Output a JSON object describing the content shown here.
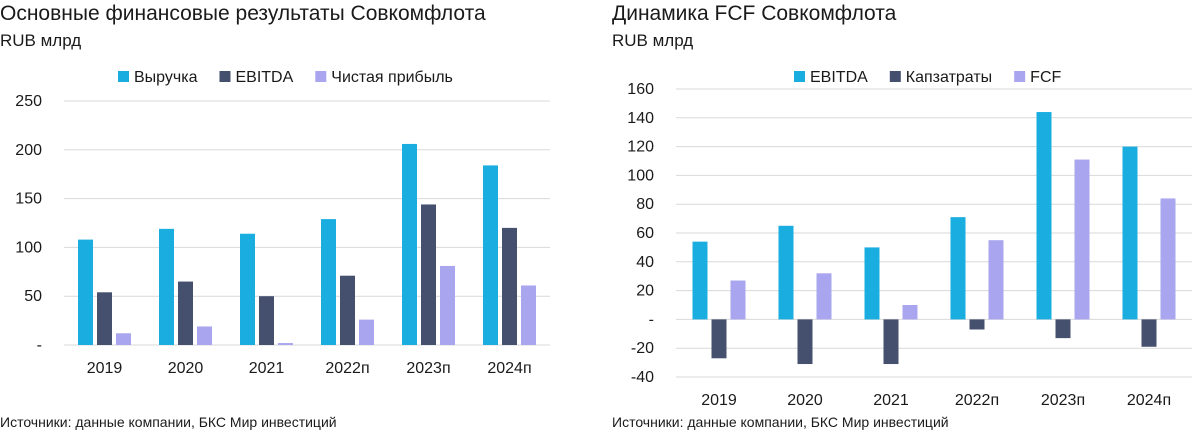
{
  "charts": [
    {
      "title": "Основные финансовые результаты Совкомфлота",
      "unit": "RUB млрд",
      "source": "Источники: данные компании, БКС Мир инвестиций",
      "chart_data": {
        "type": "bar",
        "categories": [
          "2019",
          "2020",
          "2021",
          "2022п",
          "2023п",
          "2024п"
        ],
        "series": [
          {
            "name": "Выручка",
            "color": "#1aaee0",
            "values": [
              108,
              119,
              114,
              129,
              206,
              184
            ]
          },
          {
            "name": "EBITDA",
            "color": "#44506e",
            "values": [
              54,
              65,
              50,
              71,
              144,
              120
            ]
          },
          {
            "name": "Чистая прибыль",
            "color": "#a9a5ee",
            "values": [
              12,
              19,
              2,
              26,
              81,
              61
            ]
          }
        ],
        "ylim": [
          0,
          250
        ],
        "yticks": [
          0,
          50,
          100,
          150,
          200,
          250
        ],
        "ytick_labels": [
          "-",
          "50",
          "100",
          "150",
          "200",
          "250"
        ],
        "grid": true,
        "legend": "top"
      }
    },
    {
      "title": "Динамика FCF Совкомфлота",
      "unit": "RUB млрд",
      "source": "Источники: данные компании, БКС Мир инвестиций",
      "chart_data": {
        "type": "bar",
        "categories": [
          "2019",
          "2020",
          "2021",
          "2022п",
          "2023п",
          "2024п"
        ],
        "series": [
          {
            "name": "EBITDA",
            "color": "#1aaee0",
            "values": [
              54,
              65,
              50,
              71,
              144,
              120
            ]
          },
          {
            "name": "Капзатраты",
            "color": "#44506e",
            "values": [
              -27,
              -31,
              -31,
              -7,
              -13,
              -19
            ]
          },
          {
            "name": "FCF",
            "color": "#a9a5ee",
            "values": [
              27,
              32,
              10,
              55,
              111,
              84
            ]
          }
        ],
        "ylim": [
          -40,
          160
        ],
        "yticks": [
          -40,
          -20,
          0,
          20,
          40,
          60,
          80,
          100,
          120,
          140,
          160
        ],
        "ytick_labels": [
          "-40",
          "-20",
          "-",
          "20",
          "40",
          "60",
          "80",
          "100",
          "120",
          "140",
          "160"
        ],
        "grid": true,
        "legend": "top"
      }
    }
  ]
}
